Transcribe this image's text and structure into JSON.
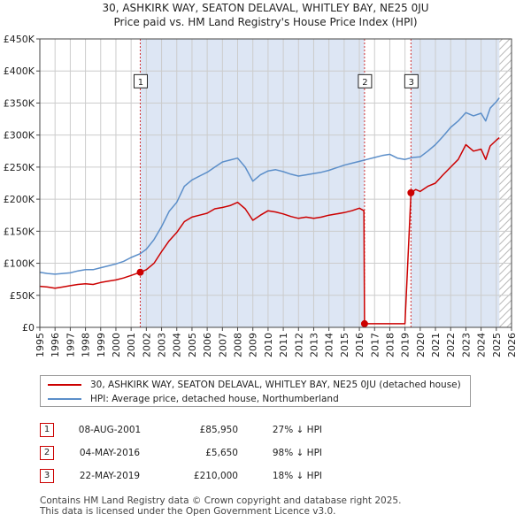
{
  "title": {
    "line1": "30, ASHKIRK WAY, SEATON DELAVAL, WHITLEY BAY, NE25 0JU",
    "line2": "Price paid vs. HM Land Registry's House Price Index (HPI)"
  },
  "colors": {
    "price": "#cc0000",
    "hpi": "#5b8ec9",
    "shade": "#dde6f4",
    "grid": "#cccccc"
  },
  "chart_data": {
    "type": "line",
    "title": "Price paid vs. HM Land Registry's House Price Index (HPI)",
    "xlabel": "",
    "ylabel": "",
    "xlim": [
      1995,
      2026
    ],
    "ylim": [
      0,
      450000
    ],
    "x_ticks": [
      1995,
      1996,
      1997,
      1998,
      1999,
      2000,
      2001,
      2002,
      2003,
      2004,
      2005,
      2006,
      2007,
      2008,
      2009,
      2010,
      2011,
      2012,
      2013,
      2014,
      2015,
      2016,
      2017,
      2018,
      2019,
      2020,
      2021,
      2022,
      2023,
      2024,
      2025,
      2026
    ],
    "y_ticks": [
      {
        "value": 0,
        "label": "£0"
      },
      {
        "value": 50000,
        "label": "£50K"
      },
      {
        "value": 100000,
        "label": "£100K"
      },
      {
        "value": 150000,
        "label": "£150K"
      },
      {
        "value": 200000,
        "label": "£200K"
      },
      {
        "value": 250000,
        "label": "£250K"
      },
      {
        "value": 300000,
        "label": "£300K"
      },
      {
        "value": 350000,
        "label": "£350K"
      },
      {
        "value": 400000,
        "label": "£400K"
      },
      {
        "value": 450000,
        "label": "£450K"
      }
    ],
    "shaded_ranges": [
      [
        2001.6,
        2016.34
      ],
      [
        2019.39,
        2025.2
      ]
    ],
    "hatched_range": [
      2025.2,
      2026
    ],
    "series": [
      {
        "name": "30, ASHKIRK WAY, SEATON DELAVAL, WHITLEY BAY, NE25 0JU (detached house)",
        "color": "#cc0000",
        "points": [
          [
            1995.0,
            64000
          ],
          [
            1995.5,
            63000
          ],
          [
            1996.0,
            61000
          ],
          [
            1996.5,
            63000
          ],
          [
            1997.0,
            65000
          ],
          [
            1997.5,
            67000
          ],
          [
            1998.0,
            68000
          ],
          [
            1998.5,
            67000
          ],
          [
            1999.0,
            70000
          ],
          [
            1999.5,
            72000
          ],
          [
            2000.0,
            74000
          ],
          [
            2000.5,
            77000
          ],
          [
            2001.0,
            81000
          ],
          [
            2001.6,
            85950
          ],
          [
            2002.0,
            90000
          ],
          [
            2002.5,
            100000
          ],
          [
            2003.0,
            118000
          ],
          [
            2003.5,
            135000
          ],
          [
            2004.0,
            148000
          ],
          [
            2004.5,
            165000
          ],
          [
            2005.0,
            172000
          ],
          [
            2005.5,
            175000
          ],
          [
            2006.0,
            178000
          ],
          [
            2006.5,
            185000
          ],
          [
            2007.0,
            187000
          ],
          [
            2007.5,
            190000
          ],
          [
            2008.0,
            195000
          ],
          [
            2008.5,
            185000
          ],
          [
            2009.0,
            167000
          ],
          [
            2009.5,
            175000
          ],
          [
            2010.0,
            182000
          ],
          [
            2010.5,
            180000
          ],
          [
            2011.0,
            177000
          ],
          [
            2011.5,
            173000
          ],
          [
            2012.0,
            170000
          ],
          [
            2012.5,
            172000
          ],
          [
            2013.0,
            170000
          ],
          [
            2013.5,
            172000
          ],
          [
            2014.0,
            175000
          ],
          [
            2014.5,
            177000
          ],
          [
            2015.0,
            179000
          ],
          [
            2015.5,
            182000
          ],
          [
            2016.0,
            186000
          ],
          [
            2016.3,
            182000
          ],
          [
            2016.34,
            5650
          ],
          [
            2017.0,
            5650
          ],
          [
            2018.0,
            5650
          ],
          [
            2019.0,
            5650
          ],
          [
            2019.39,
            210000
          ],
          [
            2019.7,
            215000
          ],
          [
            2020.0,
            212000
          ],
          [
            2020.5,
            220000
          ],
          [
            2021.0,
            225000
          ],
          [
            2021.5,
            238000
          ],
          [
            2022.0,
            250000
          ],
          [
            2022.5,
            262000
          ],
          [
            2023.0,
            285000
          ],
          [
            2023.5,
            275000
          ],
          [
            2024.0,
            278000
          ],
          [
            2024.3,
            262000
          ],
          [
            2024.6,
            283000
          ],
          [
            2025.0,
            292000
          ],
          [
            2025.2,
            296000
          ]
        ]
      },
      {
        "name": "HPI: Average price, detached house, Northumberland",
        "color": "#5b8ec9",
        "points": [
          [
            1995.0,
            86000
          ],
          [
            1995.5,
            84000
          ],
          [
            1996.0,
            83000
          ],
          [
            1996.5,
            84000
          ],
          [
            1997.0,
            85000
          ],
          [
            1997.5,
            88000
          ],
          [
            1998.0,
            90000
          ],
          [
            1998.5,
            90000
          ],
          [
            1999.0,
            93000
          ],
          [
            1999.5,
            96000
          ],
          [
            2000.0,
            99000
          ],
          [
            2000.5,
            103000
          ],
          [
            2001.0,
            109000
          ],
          [
            2001.6,
            115000
          ],
          [
            2002.0,
            122000
          ],
          [
            2002.5,
            137000
          ],
          [
            2003.0,
            157000
          ],
          [
            2003.5,
            181000
          ],
          [
            2004.0,
            195000
          ],
          [
            2004.5,
            220000
          ],
          [
            2005.0,
            230000
          ],
          [
            2005.5,
            236000
          ],
          [
            2006.0,
            242000
          ],
          [
            2006.5,
            250000
          ],
          [
            2007.0,
            258000
          ],
          [
            2007.5,
            261000
          ],
          [
            2008.0,
            264000
          ],
          [
            2008.5,
            250000
          ],
          [
            2009.0,
            228000
          ],
          [
            2009.5,
            238000
          ],
          [
            2010.0,
            244000
          ],
          [
            2010.5,
            246000
          ],
          [
            2011.0,
            243000
          ],
          [
            2011.5,
            239000
          ],
          [
            2012.0,
            236000
          ],
          [
            2012.5,
            238000
          ],
          [
            2013.0,
            240000
          ],
          [
            2013.5,
            242000
          ],
          [
            2014.0,
            245000
          ],
          [
            2014.5,
            249000
          ],
          [
            2015.0,
            253000
          ],
          [
            2015.5,
            256000
          ],
          [
            2016.0,
            259000
          ],
          [
            2016.5,
            262000
          ],
          [
            2017.0,
            265000
          ],
          [
            2017.5,
            268000
          ],
          [
            2018.0,
            270000
          ],
          [
            2018.5,
            264000
          ],
          [
            2019.0,
            262000
          ],
          [
            2019.5,
            265000
          ],
          [
            2020.0,
            266000
          ],
          [
            2020.5,
            275000
          ],
          [
            2021.0,
            285000
          ],
          [
            2021.5,
            298000
          ],
          [
            2022.0,
            312000
          ],
          [
            2022.5,
            322000
          ],
          [
            2023.0,
            335000
          ],
          [
            2023.5,
            330000
          ],
          [
            2024.0,
            334000
          ],
          [
            2024.3,
            322000
          ],
          [
            2024.6,
            342000
          ],
          [
            2025.0,
            352000
          ],
          [
            2025.2,
            358000
          ]
        ]
      }
    ],
    "sale_markers": [
      {
        "label": "1",
        "x": 2001.6,
        "y": 85950,
        "label_y": 375000
      },
      {
        "label": "2",
        "x": 2016.34,
        "y": 5650,
        "label_y": 375000
      },
      {
        "label": "3",
        "x": 2019.39,
        "y": 210000,
        "label_y": 375000
      }
    ]
  },
  "legend": {
    "price_label": "30, ASHKIRK WAY, SEATON DELAVAL, WHITLEY BAY, NE25 0JU (detached house)",
    "hpi_label": "HPI: Average price, detached house, Northumberland"
  },
  "sales_table": [
    {
      "num": "1",
      "date": "08-AUG-2001",
      "price": "£85,950",
      "hpi": "27% ↓ HPI"
    },
    {
      "num": "2",
      "date": "04-MAY-2016",
      "price": "£5,650",
      "hpi": "98% ↓ HPI"
    },
    {
      "num": "3",
      "date": "22-MAY-2019",
      "price": "£210,000",
      "hpi": "18% ↓ HPI"
    }
  ],
  "footer": {
    "line1": "Contains HM Land Registry data © Crown copyright and database right 2025.",
    "line2": "This data is licensed under the Open Government Licence v3.0."
  }
}
